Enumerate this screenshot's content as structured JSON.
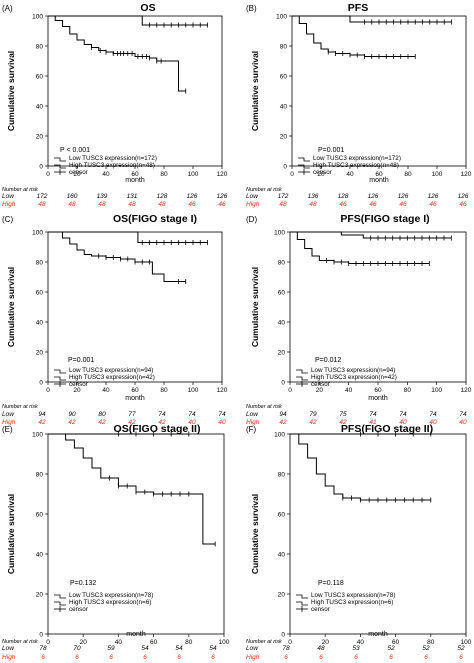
{
  "panels": [
    {
      "tag": "(A)",
      "title": "OS",
      "ylabel": "Cumulative survival",
      "xlabel": "month",
      "p_value": "P < 0.001",
      "legend": [
        "Low TUSC3 expression(n=172)",
        "High TUSC3 expression(n=48)",
        "censor"
      ],
      "risk_header": "Number at risk",
      "risk_rows": [
        {
          "label": "Low",
          "values": [
            "172",
            "160",
            "139",
            "131",
            "128",
            "126",
            "126"
          ]
        },
        {
          "label": "High",
          "values": [
            "48",
            "48",
            "48",
            "48",
            "48",
            "46",
            "46"
          ]
        }
      ]
    },
    {
      "tag": "(B)",
      "title": "PFS",
      "ylabel": "Cumulative survival",
      "xlabel": "month",
      "p_value": "P=0.001",
      "legend": [
        "Low TUSC3 expression(n=172)",
        "High TUSC3 expression(n=48)",
        "censor"
      ],
      "risk_header": "Number at risk",
      "risk_rows": [
        {
          "label": "Low",
          "values": [
            "172",
            "136",
            "128",
            "126",
            "126",
            "126",
            "126"
          ]
        },
        {
          "label": "High",
          "values": [
            "48",
            "48",
            "46",
            "46",
            "46",
            "46",
            "46"
          ]
        }
      ]
    },
    {
      "tag": "(C)",
      "title": "OS(FIGO stage I)",
      "ylabel": "Cumulative survival",
      "xlabel": "month",
      "p_value": "P=0.001",
      "legend": [
        "Low TUSC3 expression(n=94)",
        "High TUSC3 expression(n=42)",
        "censor"
      ],
      "risk_header": "Number at risk",
      "risk_rows": [
        {
          "label": "Low",
          "values": [
            "94",
            "90",
            "80",
            "77",
            "74",
            "74",
            "74"
          ]
        },
        {
          "label": "High",
          "values": [
            "42",
            "42",
            "42",
            "42",
            "42",
            "40",
            "40"
          ]
        }
      ]
    },
    {
      "tag": "(D)",
      "title": "PFS(FIGO stage I)",
      "ylabel": "Cumulative survival",
      "xlabel": "month",
      "p_value": "P=0.012",
      "legend": [
        "Low TUSC3 expression(n=94)",
        "High TUSC3 expression(n=42)",
        "censor"
      ],
      "risk_header": "Number at risk",
      "risk_rows": [
        {
          "label": "Low",
          "values": [
            "94",
            "79",
            "75",
            "74",
            "74",
            "74",
            "74"
          ]
        },
        {
          "label": "High",
          "values": [
            "42",
            "42",
            "42",
            "41",
            "40",
            "40",
            "40"
          ]
        }
      ]
    },
    {
      "tag": "(E)",
      "title": "OS(FIGO stage II)",
      "ylabel": "Cumulative survival",
      "xlabel": "month",
      "p_value": "P=0.132",
      "legend": [
        "Low TUSC3 expression(n=78)",
        "High TUSC3 expression(n=6)",
        "censor"
      ],
      "risk_header": "Number at risk",
      "risk_rows": [
        {
          "label": "Low",
          "values": [
            "78",
            "70",
            "59",
            "54",
            "54",
            "54"
          ]
        },
        {
          "label": "High",
          "values": [
            "6",
            "6",
            "6",
            "6",
            "6",
            "6"
          ]
        }
      ]
    },
    {
      "tag": "(F)",
      "title": "PFS(FIGO stage II)",
      "ylabel": "Cumulative survival",
      "xlabel": "month",
      "p_value": "P=0.118",
      "legend": [
        "Low TUSC3 expression(n=78)",
        "High TUSC3 expression(n=6)",
        "censor"
      ],
      "risk_header": "Number at risk",
      "risk_rows": [
        {
          "label": "Low",
          "values": [
            "78",
            "48",
            "53",
            "52",
            "52",
            "52"
          ]
        },
        {
          "label": "High",
          "values": [
            "6",
            "6",
            "6",
            "6",
            "6",
            "6"
          ]
        }
      ]
    }
  ],
  "colors": {
    "low": "#000000",
    "high": "#d9331a"
  },
  "chart_data": [
    {
      "type": "line",
      "title": "OS",
      "xlabel": "month",
      "ylabel": "Cumulative survival",
      "xlim": [
        0,
        120
      ],
      "ylim": [
        0,
        100
      ],
      "xticks": [
        0,
        20,
        40,
        60,
        80,
        100,
        120
      ],
      "yticks": [
        0,
        20,
        40,
        60,
        80,
        100
      ],
      "grid": false,
      "legend_position": "bottom-left",
      "series": [
        {
          "name": "Low TUSC3 expression(n=172)",
          "step": true,
          "x": [
            0,
            5,
            10,
            15,
            20,
            25,
            30,
            35,
            40,
            45,
            50,
            60,
            70,
            75,
            80,
            90,
            95
          ],
          "y": [
            100,
            97,
            93,
            88,
            84,
            81,
            79,
            77,
            76,
            75,
            75,
            73,
            72,
            70,
            70,
            50,
            50
          ],
          "censor_x": [
            30,
            36,
            40,
            45,
            48,
            50,
            52,
            55,
            58,
            62,
            65,
            68,
            70,
            75,
            78,
            95
          ]
        },
        {
          "name": "High TUSC3 expression(n=48)",
          "step": true,
          "x": [
            0,
            40,
            65,
            110
          ],
          "y": [
            100,
            100,
            94,
            94
          ],
          "censor_x": [
            70,
            75,
            80,
            85,
            90,
            95,
            100,
            105,
            110
          ]
        }
      ]
    },
    {
      "type": "line",
      "title": "PFS",
      "xlabel": "month",
      "ylabel": "Cumulative survival",
      "xlim": [
        0,
        120
      ],
      "ylim": [
        0,
        100
      ],
      "xticks": [
        0,
        20,
        40,
        60,
        80,
        100,
        120
      ],
      "yticks": [
        0,
        20,
        40,
        60,
        80,
        100
      ],
      "grid": false,
      "legend_position": "bottom-left",
      "series": [
        {
          "name": "Low TUSC3 expression(n=172)",
          "step": true,
          "x": [
            0,
            5,
            10,
            15,
            20,
            25,
            30,
            40,
            50,
            85
          ],
          "y": [
            100,
            95,
            88,
            82,
            78,
            76,
            75,
            74,
            73,
            73
          ],
          "censor_x": [
            25,
            30,
            35,
            40,
            45,
            50,
            55,
            60,
            65,
            70,
            75,
            80,
            85
          ]
        },
        {
          "name": "High TUSC3 expression(n=48)",
          "step": true,
          "x": [
            0,
            15,
            40,
            110
          ],
          "y": [
            100,
            100,
            96,
            96
          ],
          "censor_x": [
            50,
            55,
            60,
            65,
            70,
            75,
            80,
            85,
            90,
            95,
            100,
            105,
            110
          ]
        }
      ]
    },
    {
      "type": "line",
      "title": "OS(FIGO stage I)",
      "xlabel": "month",
      "ylabel": "Cumulative survival",
      "xlim": [
        0,
        120
      ],
      "ylim": [
        0,
        100
      ],
      "xticks": [
        0,
        20,
        40,
        60,
        80,
        100,
        120
      ],
      "yticks": [
        0,
        20,
        40,
        60,
        80,
        100
      ],
      "grid": false,
      "legend_position": "bottom-left",
      "series": [
        {
          "name": "Low TUSC3 expression(n=94)",
          "step": true,
          "x": [
            0,
            10,
            15,
            20,
            25,
            30,
            40,
            50,
            60,
            72,
            80,
            95
          ],
          "y": [
            100,
            96,
            92,
            88,
            85,
            84,
            83,
            82,
            80,
            72,
            67,
            67
          ],
          "censor_x": [
            35,
            40,
            45,
            50,
            55,
            60,
            65,
            70,
            90,
            95
          ]
        },
        {
          "name": "High TUSC3 expression(n=42)",
          "step": true,
          "x": [
            0,
            30,
            62,
            110
          ],
          "y": [
            100,
            100,
            93,
            93
          ],
          "censor_x": [
            65,
            70,
            75,
            80,
            85,
            90,
            95,
            100,
            105,
            110
          ]
        }
      ]
    },
    {
      "type": "line",
      "title": "PFS(FIGO stage I)",
      "xlabel": "month",
      "ylabel": "Cumulative survival",
      "xlim": [
        0,
        120
      ],
      "ylim": [
        0,
        100
      ],
      "xticks": [
        0,
        20,
        40,
        60,
        80,
        100,
        120
      ],
      "yticks": [
        0,
        20,
        40,
        60,
        80,
        100
      ],
      "grid": false,
      "legend_position": "bottom-left",
      "series": [
        {
          "name": "Low TUSC3 expression(n=94)",
          "step": true,
          "x": [
            0,
            5,
            10,
            15,
            20,
            30,
            40,
            95
          ],
          "y": [
            100,
            95,
            89,
            84,
            81,
            80,
            79,
            79
          ],
          "censor_x": [
            25,
            30,
            35,
            40,
            45,
            50,
            55,
            60,
            65,
            70,
            75,
            80,
            85,
            90,
            95
          ]
        },
        {
          "name": "High TUSC3 expression(n=42)",
          "step": true,
          "x": [
            0,
            25,
            35,
            50,
            110
          ],
          "y": [
            100,
            100,
            98,
            96,
            96
          ],
          "censor_x": [
            55,
            60,
            65,
            70,
            75,
            80,
            85,
            90,
            95,
            100,
            105,
            110
          ]
        }
      ]
    },
    {
      "type": "line",
      "title": "OS(FIGO stage II)",
      "xlabel": "month",
      "ylabel": "Cumulative survival",
      "xlim": [
        0,
        100
      ],
      "ylim": [
        0,
        100
      ],
      "xticks": [
        0,
        20,
        40,
        60,
        80,
        100
      ],
      "yticks": [
        0,
        20,
        40,
        60,
        80,
        100
      ],
      "grid": false,
      "legend_position": "bottom-left",
      "series": [
        {
          "name": "Low TUSC3 expression(n=78)",
          "step": true,
          "x": [
            0,
            10,
            15,
            20,
            25,
            30,
            40,
            50,
            60,
            88,
            95
          ],
          "y": [
            100,
            97,
            93,
            88,
            83,
            78,
            74,
            71,
            70,
            45,
            45
          ],
          "censor_x": [
            35,
            40,
            45,
            50,
            55,
            60,
            65,
            70,
            75,
            80,
            95
          ]
        },
        {
          "name": "High TUSC3 expression(n=6)",
          "step": true,
          "x": [
            0,
            80
          ],
          "y": [
            100,
            100
          ],
          "censor_x": [
            40,
            50,
            60,
            70,
            80
          ]
        }
      ]
    },
    {
      "type": "line",
      "title": "PFS(FIGO stage II)",
      "xlabel": "month",
      "ylabel": "Cumulative survival",
      "xlim": [
        0,
        100
      ],
      "ylim": [
        0,
        100
      ],
      "xticks": [
        0,
        20,
        40,
        60,
        80,
        100
      ],
      "yticks": [
        0,
        20,
        40,
        60,
        80,
        100
      ],
      "grid": false,
      "legend_position": "bottom-left",
      "series": [
        {
          "name": "Low TUSC3 expression(n=78)",
          "step": true,
          "x": [
            0,
            5,
            10,
            15,
            20,
            25,
            30,
            40,
            80
          ],
          "y": [
            100,
            95,
            88,
            80,
            74,
            70,
            68,
            67,
            67
          ],
          "censor_x": [
            30,
            35,
            40,
            45,
            50,
            55,
            60,
            65,
            70,
            75,
            80
          ]
        },
        {
          "name": "High TUSC3 expression(n=6)",
          "step": true,
          "x": [
            0,
            80
          ],
          "y": [
            100,
            100
          ],
          "censor_x": [
            40,
            50,
            60,
            70,
            80
          ]
        }
      ]
    }
  ]
}
